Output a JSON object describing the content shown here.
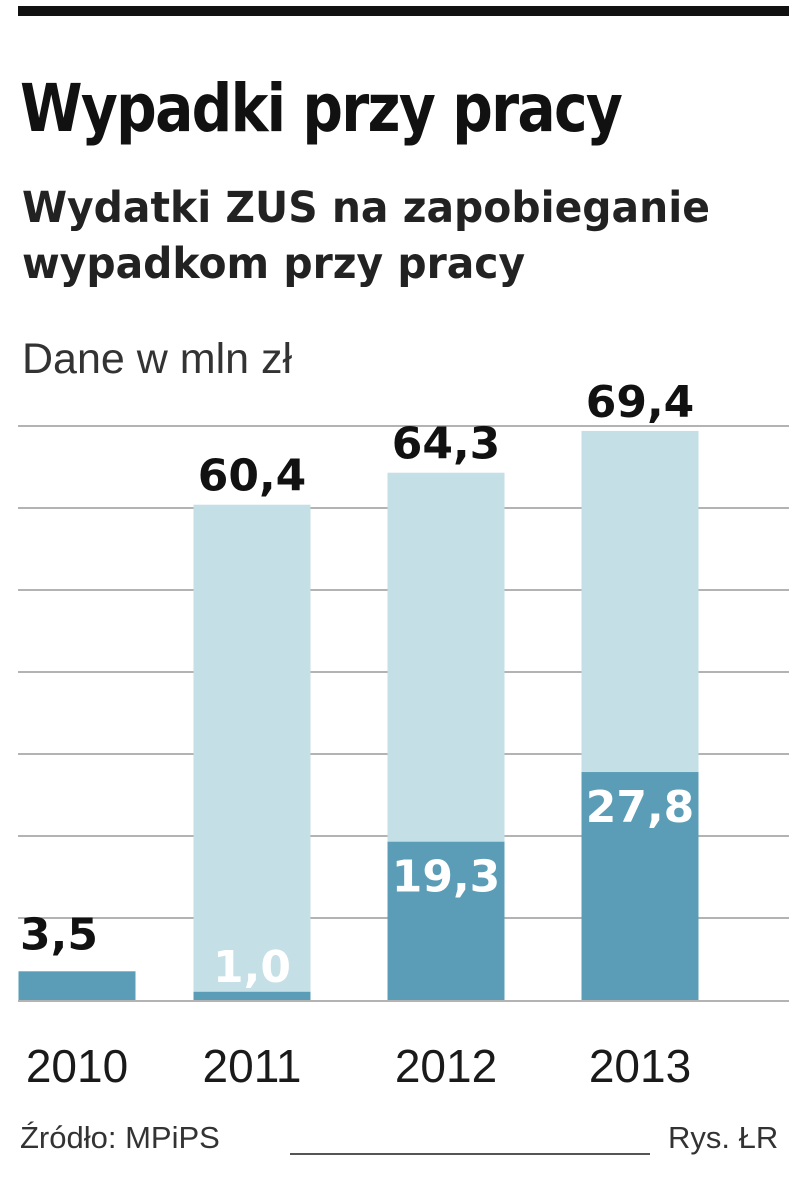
{
  "chart_data": {
    "type": "bar",
    "title": "Wypadki przy pracy",
    "subtitle": "Wydatki ZUS na zapobieganie wypadkom przy pracy",
    "unit_label": "Dane w mln zł",
    "categories": [
      "2010",
      "2011",
      "2012",
      "2013"
    ],
    "series": [
      {
        "values": [
          3.5,
          1.0,
          19.3,
          27.8
        ],
        "labels": [
          "3,5",
          "1,0",
          "19,3",
          "27,8"
        ],
        "color": "#5b9db7"
      },
      {
        "values": [
          null,
          60.4,
          64.3,
          69.4
        ],
        "labels": [
          "",
          "60,4",
          "64,3",
          "69,4"
        ],
        "color": "#c5dfe6"
      }
    ],
    "ylim": [
      0,
      70
    ],
    "grid": true,
    "gridline_color": "#9a9a9a"
  },
  "footer": {
    "source": "Źródło: MPiPS",
    "credit": "Rys. ŁR"
  }
}
